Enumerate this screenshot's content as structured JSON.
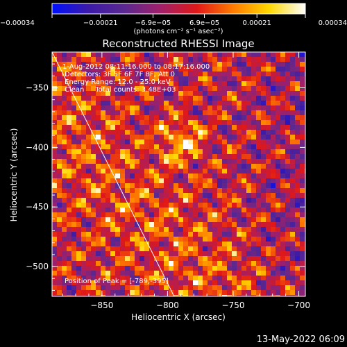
{
  "chart_data": {
    "type": "heatmap",
    "title": "Reconstructed RHESSI Image",
    "xlabel": "Heliocentric X (arcsec)",
    "ylabel": "Heliocentric Y (arcsec)",
    "xlim": [
      -888,
      -695
    ],
    "ylim": [
      -525,
      -320
    ],
    "x_ticks": [
      {
        "value": -850,
        "label": "−850"
      },
      {
        "value": -800,
        "label": "−800"
      },
      {
        "value": -750,
        "label": "−750"
      },
      {
        "value": -700,
        "label": "−700"
      }
    ],
    "y_ticks": [
      {
        "value": -350,
        "label": "−350"
      },
      {
        "value": -400,
        "label": "−400"
      },
      {
        "value": -450,
        "label": "−450"
      },
      {
        "value": -500,
        "label": "−500"
      }
    ],
    "colorbar": {
      "colormap": "blue-purple-red-yellow-white",
      "range": [
        -0.00034,
        0.00034
      ],
      "ticks": [
        {
          "value": -0.00034,
          "label": "−0.00034"
        },
        {
          "value": -0.00021,
          "label": "−0.00021"
        },
        {
          "value": -6.9e-05,
          "label": "−6.9e−05"
        },
        {
          "value": 6.9e-05,
          "label": "6.9e−05"
        },
        {
          "value": 0.00021,
          "label": "0.00021"
        },
        {
          "value": 0.00034,
          "label": "0.00034"
        }
      ],
      "unit_label": "(photons cm⁻² s⁻¹ asec⁻²)"
    },
    "annotations": [
      "1-Aug-2012 08:11:16.000 to 08:17:16.000",
      "Detectors: 3F 5F 6F 7F 8F, Att 0",
      "Energy Range: 12.0 - 25.0 keV",
      "Clean     Total counts: 3.48E+03"
    ],
    "peak_label": "Position of Peak = [-789,-395]",
    "peak": [
      -789,
      -395
    ],
    "limb_line": [
      [
        -888,
        -320
      ],
      [
        -795,
        -525
      ]
    ],
    "grid": false
  },
  "footer": {
    "timestamp": "13-May-2022 06:09"
  },
  "colors": {
    "background": "#000000",
    "foreground": "#ffffff",
    "cmap_stops": [
      "#0010ff",
      "#3c1aa8",
      "#5a2890",
      "#a0206a",
      "#e01818",
      "#ff7a00",
      "#ffd800",
      "#ffffff"
    ]
  }
}
